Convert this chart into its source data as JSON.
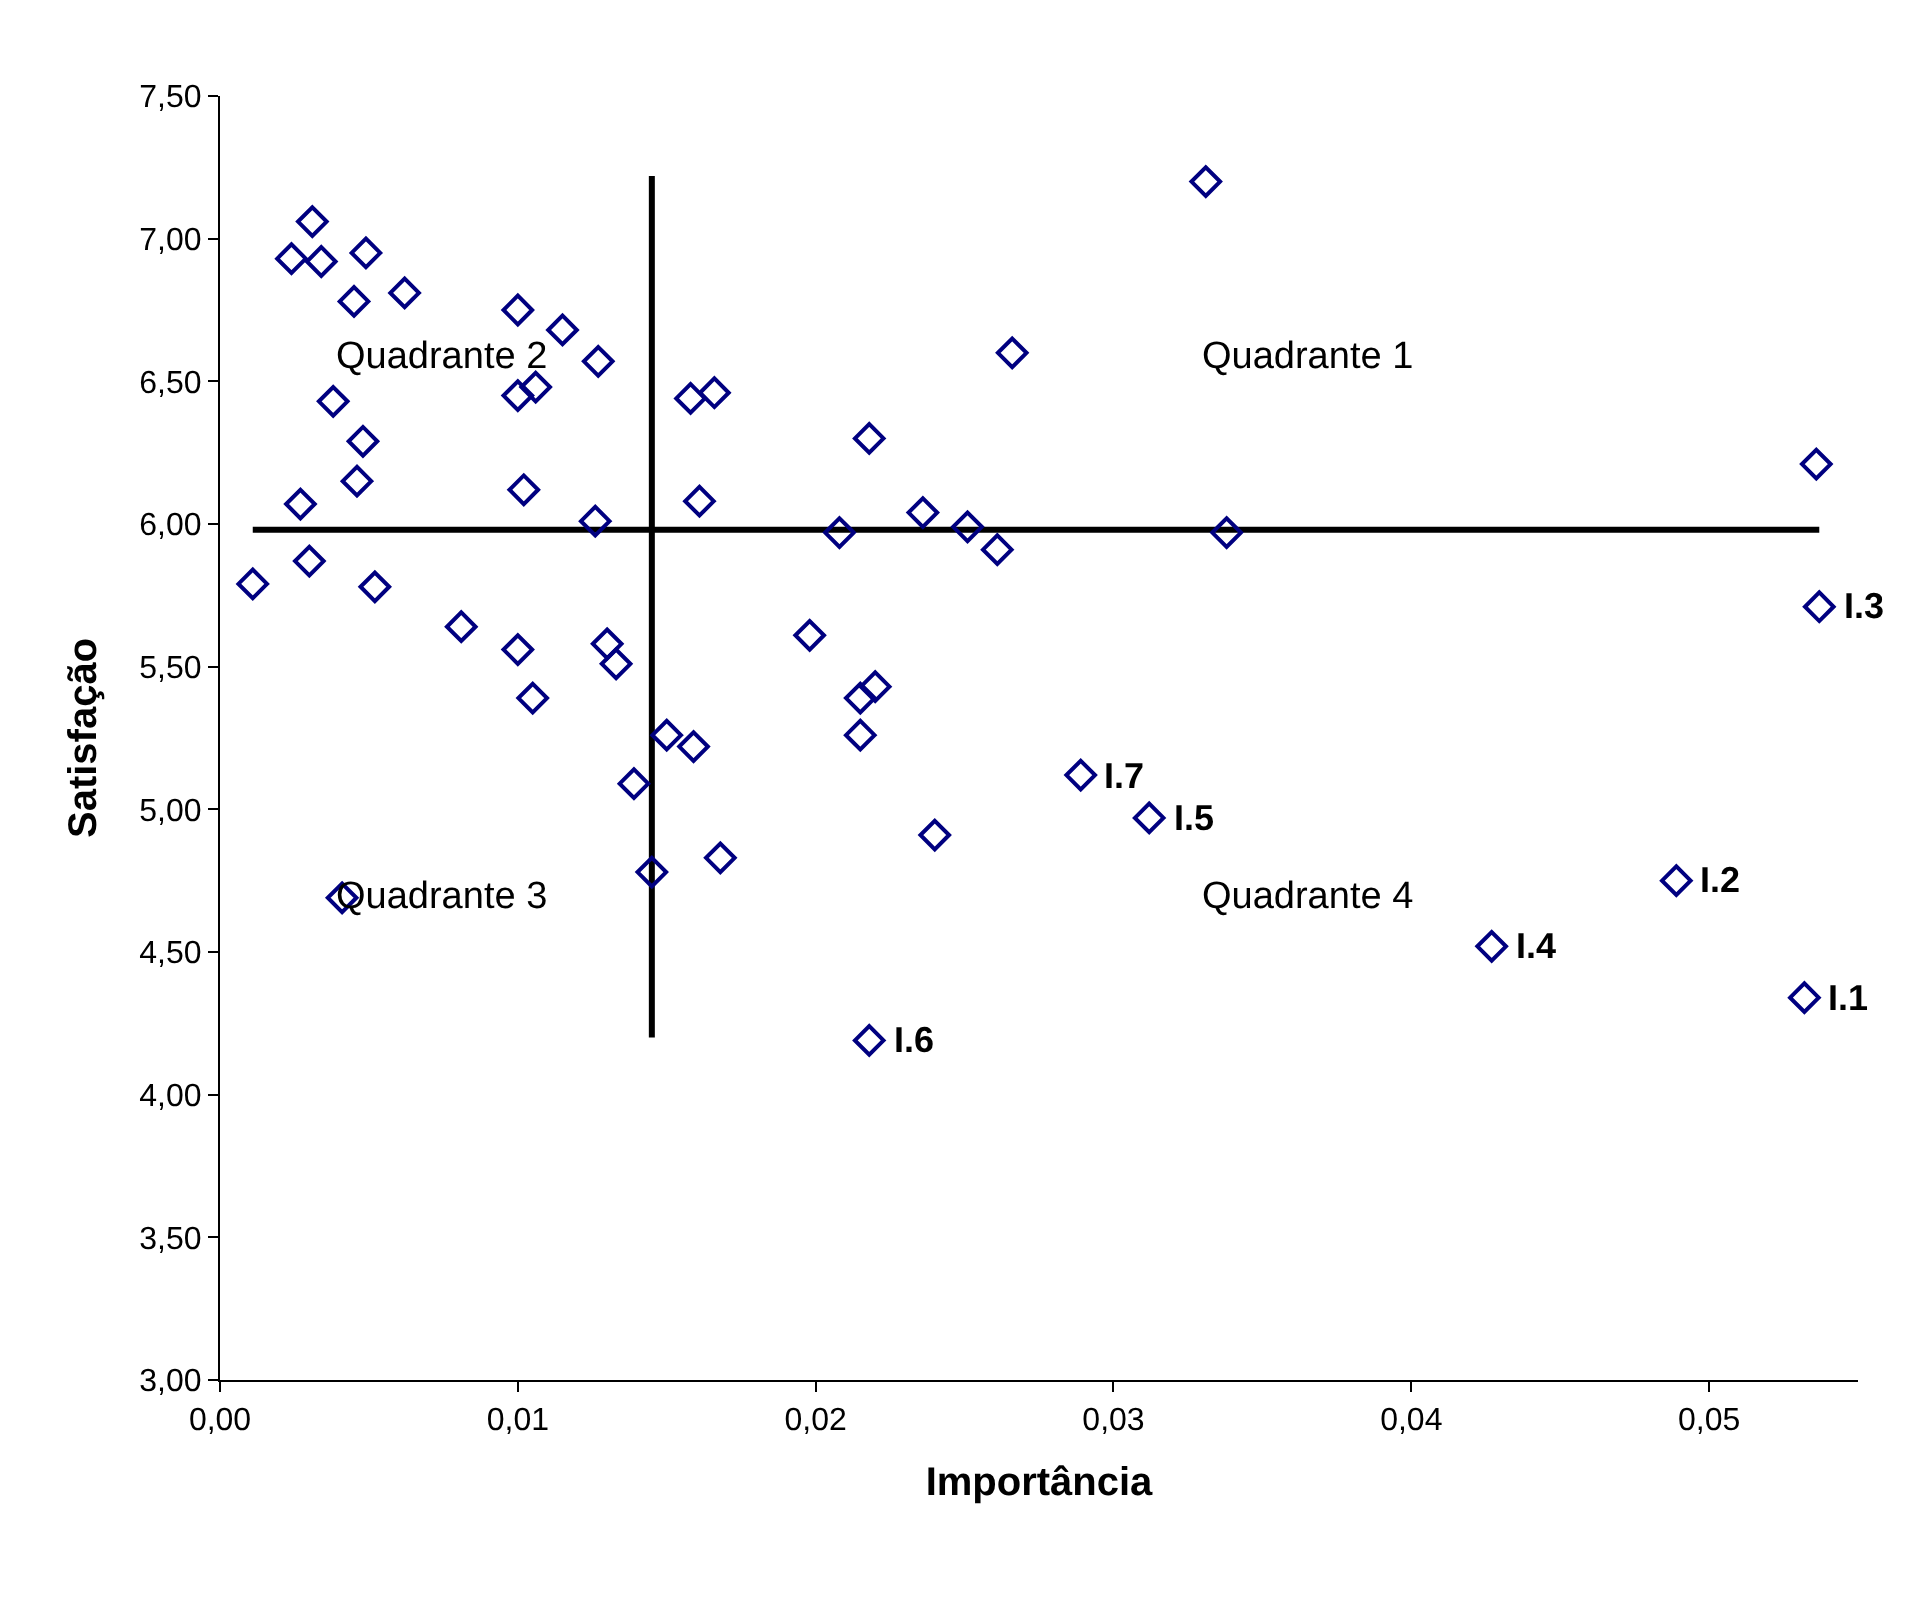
{
  "chart_data": {
    "type": "scatter",
    "xlabel": "Importância",
    "ylabel": "Satisfação",
    "xlim": [
      0,
      0.055
    ],
    "ylim": [
      3,
      7.5
    ],
    "xticks": [
      {
        "value": 0,
        "label": "0,00"
      },
      {
        "value": 0.01,
        "label": "0,01"
      },
      {
        "value": 0.02,
        "label": "0,02"
      },
      {
        "value": 0.03,
        "label": "0,03"
      },
      {
        "value": 0.04,
        "label": "0,04"
      },
      {
        "value": 0.05,
        "label": "0,05"
      }
    ],
    "yticks": [
      {
        "value": 3,
        "label": "3,00"
      },
      {
        "value": 3.5,
        "label": "3,50"
      },
      {
        "value": 4,
        "label": "4,00"
      },
      {
        "value": 4.5,
        "label": "4,50"
      },
      {
        "value": 5,
        "label": "5,00"
      },
      {
        "value": 5.5,
        "label": "5,50"
      },
      {
        "value": 6,
        "label": "6,00"
      },
      {
        "value": 6.5,
        "label": "6,50"
      },
      {
        "value": 7,
        "label": "7,00"
      },
      {
        "value": 7.5,
        "label": "7,50"
      }
    ],
    "marker": "diamond",
    "series": [
      {
        "type": "line",
        "color": "#000000",
        "marker": "none",
        "x": [
          0.0011,
          0.0537
        ],
        "values": [
          5.98,
          5.98
        ]
      },
      {
        "type": "line",
        "color": "#000000",
        "marker": "none",
        "x": [
          0.0145,
          0.0145
        ],
        "values": [
          4.2,
          7.22
        ]
      },
      {
        "color": "#000080",
        "x": [
          0.0031,
          0.0024,
          0.0034,
          0.0049,
          0.0045,
          0.0062,
          0.01,
          0.0115,
          0.0127,
          0.01,
          0.0106,
          0.0038,
          0.0048,
          0.0046,
          0.0027,
          0.0102,
          0.0126,
          0.0158,
          0.0166,
          0.0161,
          0.0011,
          0.003,
          0.0052,
          0.0081,
          0.01,
          0.013,
          0.0133,
          0.0105,
          0.0198,
          0.015,
          0.0159,
          0.0139,
          0.0145,
          0.0168,
          0.0041,
          0.0215,
          0.022,
          0.0215,
          0.024,
          0.0218,
          0.0331,
          0.0266,
          0.0218,
          0.0208,
          0.0236,
          0.0251,
          0.0261,
          0.0338,
          0.0536,
          0.0537,
          0.0289,
          0.0312,
          0.0489,
          0.0427,
          0.0532
        ],
        "values": [
          7.06,
          6.93,
          6.92,
          6.95,
          6.78,
          6.81,
          6.75,
          6.68,
          6.57,
          6.45,
          6.48,
          6.43,
          6.29,
          6.15,
          6.07,
          6.12,
          6.01,
          6.44,
          6.46,
          6.08,
          5.79,
          5.87,
          5.78,
          5.64,
          5.56,
          5.58,
          5.51,
          5.39,
          5.61,
          5.26,
          5.22,
          5.09,
          4.78,
          4.83,
          4.69,
          5.39,
          5.43,
          5.26,
          4.91,
          4.19,
          7.2,
          6.6,
          6.3,
          5.97,
          6.04,
          5.99,
          5.91,
          5.97,
          6.21,
          5.71,
          5.12,
          4.97,
          4.75,
          4.52,
          4.34
        ]
      }
    ],
    "annotations": [
      "Quadrante 1",
      "Quadrante 2",
      "Quadrante 3",
      "Quadrante 4",
      {
        "text": "I.1",
        "x": 0.0532,
        "y": 4.34
      },
      {
        "text": "I.2",
        "x": 0.0489,
        "y": 4.75
      },
      {
        "text": "I.3",
        "x": 0.0537,
        "y": 5.71
      },
      {
        "text": "I.4",
        "x": 0.0427,
        "y": 4.52
      },
      {
        "text": "I.5",
        "x": 0.0312,
        "y": 4.97
      },
      {
        "text": "I.6",
        "x": 0.0218,
        "y": 4.19
      },
      {
        "text": "I.7",
        "x": 0.0289,
        "y": 5.12
      }
    ]
  }
}
